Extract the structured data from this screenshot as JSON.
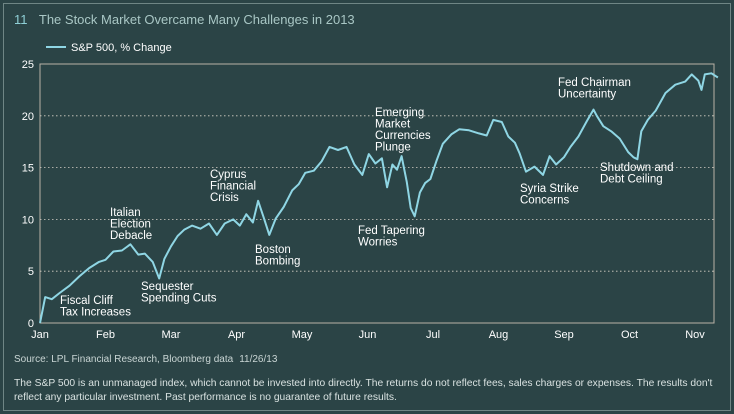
{
  "header": {
    "figure_number": "11",
    "title": "The Stock Market Overcame Many Challenges in 2013"
  },
  "footer": {
    "source": "Source: LPL Financial Research, Bloomberg data",
    "source_date": "11/26/13",
    "disclaimer": "The S&P 500 is an unmanaged index, which cannot be invested into directly. The returns do not reflect fees, sales charges or expenses. The results don't reflect any particular investment. Past performance is no guarantee of future results."
  },
  "colors": {
    "background": "#2b4446",
    "line": "#8fd6e4",
    "grid": "#d8d2c8",
    "text": "#ffffff"
  },
  "chart_data": {
    "type": "line",
    "title": "",
    "xlabel": "",
    "ylabel": "",
    "ylim": [
      0,
      25
    ],
    "yticks": [
      0,
      5,
      10,
      15,
      20,
      25
    ],
    "grid": "horizontal dotted",
    "legend_position": "top-left",
    "xticklabels": [
      "Jan",
      "Feb",
      "Mar",
      "Apr",
      "May",
      "Jun",
      "Jul",
      "Aug",
      "Sep",
      "Oct",
      "Nov"
    ],
    "series": [
      {
        "name": "S&P 500, % Change",
        "points": [
          [
            0.0,
            0.0
          ],
          [
            0.08,
            2.5
          ],
          [
            0.18,
            2.3
          ],
          [
            0.3,
            2.9
          ],
          [
            0.45,
            3.6
          ],
          [
            0.6,
            4.5
          ],
          [
            0.75,
            5.3
          ],
          [
            0.9,
            5.9
          ],
          [
            1.0,
            6.1
          ],
          [
            1.12,
            6.9
          ],
          [
            1.25,
            7.0
          ],
          [
            1.38,
            7.6
          ],
          [
            1.5,
            6.6
          ],
          [
            1.6,
            6.7
          ],
          [
            1.72,
            5.9
          ],
          [
            1.82,
            4.3
          ],
          [
            1.9,
            6.2
          ],
          [
            2.0,
            7.4
          ],
          [
            2.1,
            8.4
          ],
          [
            2.2,
            9.0
          ],
          [
            2.32,
            9.4
          ],
          [
            2.45,
            9.1
          ],
          [
            2.58,
            9.6
          ],
          [
            2.7,
            8.5
          ],
          [
            2.82,
            9.6
          ],
          [
            2.95,
            10.0
          ],
          [
            3.05,
            9.4
          ],
          [
            3.15,
            10.5
          ],
          [
            3.25,
            9.7
          ],
          [
            3.33,
            11.8
          ],
          [
            3.42,
            10.1
          ],
          [
            3.5,
            8.5
          ],
          [
            3.6,
            10.1
          ],
          [
            3.72,
            11.2
          ],
          [
            3.85,
            12.8
          ],
          [
            3.95,
            13.4
          ],
          [
            4.05,
            14.5
          ],
          [
            4.18,
            14.7
          ],
          [
            4.3,
            15.6
          ],
          [
            4.42,
            17.0
          ],
          [
            4.55,
            16.7
          ],
          [
            4.68,
            17.0
          ],
          [
            4.8,
            15.3
          ],
          [
            4.92,
            14.3
          ],
          [
            5.02,
            16.3
          ],
          [
            5.12,
            15.4
          ],
          [
            5.22,
            15.9
          ],
          [
            5.3,
            13.1
          ],
          [
            5.38,
            15.3
          ],
          [
            5.45,
            14.8
          ],
          [
            5.52,
            16.1
          ],
          [
            5.6,
            13.6
          ],
          [
            5.66,
            11.1
          ],
          [
            5.72,
            10.3
          ],
          [
            5.8,
            12.6
          ],
          [
            5.88,
            13.5
          ],
          [
            5.96,
            13.9
          ],
          [
            6.05,
            15.6
          ],
          [
            6.15,
            17.3
          ],
          [
            6.28,
            18.2
          ],
          [
            6.4,
            18.7
          ],
          [
            6.55,
            18.6
          ],
          [
            6.7,
            18.3
          ],
          [
            6.82,
            18.1
          ],
          [
            6.92,
            19.6
          ],
          [
            7.05,
            19.4
          ],
          [
            7.15,
            18.0
          ],
          [
            7.25,
            17.4
          ],
          [
            7.32,
            16.4
          ],
          [
            7.42,
            14.6
          ],
          [
            7.55,
            15.1
          ],
          [
            7.68,
            14.3
          ],
          [
            7.78,
            16.1
          ],
          [
            7.88,
            15.3
          ],
          [
            8.0,
            16.0
          ],
          [
            8.1,
            17.0
          ],
          [
            8.22,
            18.0
          ],
          [
            8.35,
            19.5
          ],
          [
            8.45,
            20.6
          ],
          [
            8.5,
            20.0
          ],
          [
            8.6,
            19.0
          ],
          [
            8.72,
            18.5
          ],
          [
            8.85,
            17.8
          ],
          [
            8.98,
            16.5
          ],
          [
            9.06,
            16.0
          ],
          [
            9.12,
            15.8
          ],
          [
            9.18,
            18.5
          ],
          [
            9.28,
            19.6
          ],
          [
            9.4,
            20.5
          ],
          [
            9.55,
            22.2
          ],
          [
            9.7,
            23.0
          ],
          [
            9.85,
            23.3
          ],
          [
            9.95,
            24.0
          ],
          [
            10.05,
            23.4
          ],
          [
            10.1,
            22.5
          ],
          [
            10.15,
            24.0
          ],
          [
            10.25,
            24.1
          ],
          [
            10.35,
            23.7
          ]
        ]
      }
    ],
    "annotations": [
      {
        "lines": [
          "Fiscal Cliff",
          "Tax Increases"
        ]
      },
      {
        "lines": [
          "Italian",
          "Election",
          "Debacle"
        ]
      },
      {
        "lines": [
          "Sequester",
          "Spending Cuts"
        ]
      },
      {
        "lines": [
          "Cyprus",
          "Financial",
          "Crisis"
        ]
      },
      {
        "lines": [
          "Boston",
          "Bombing"
        ]
      },
      {
        "lines": [
          "Emerging",
          "Market",
          "Currencies",
          "Plunge"
        ]
      },
      {
        "lines": [
          "Fed Tapering",
          "Worries"
        ]
      },
      {
        "lines": [
          "Syria Strike",
          "Concerns"
        ]
      },
      {
        "lines": [
          "Fed Chairman",
          "Uncertainty"
        ]
      },
      {
        "lines": [
          "Shutdown and",
          "Debt Ceiling"
        ]
      }
    ]
  }
}
